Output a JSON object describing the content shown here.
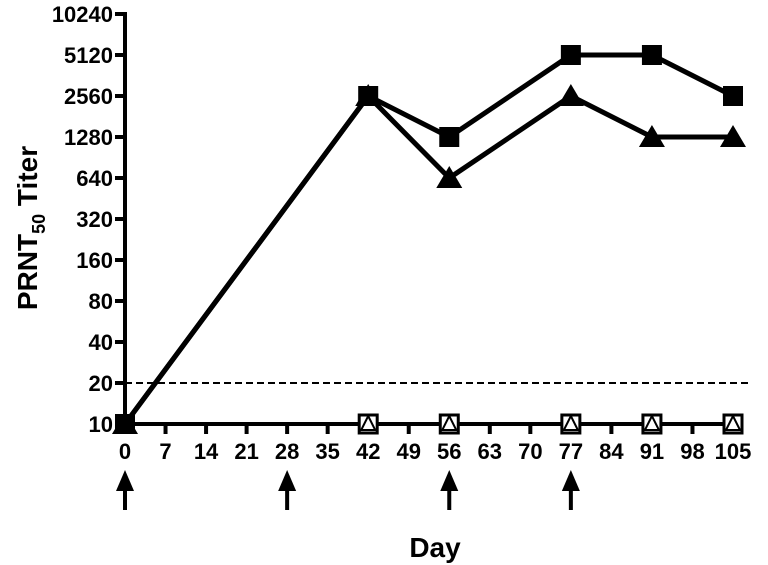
{
  "chart_data": {
    "type": "line",
    "xlabel": "Day",
    "ylabel": {
      "prefix": "PRNT",
      "subscript": "50",
      "suffix": " Titer"
    },
    "yscale": "log2",
    "ylim": [
      10,
      10240
    ],
    "xlim": [
      0,
      105
    ],
    "x_ticks": [
      0,
      7,
      14,
      21,
      28,
      35,
      42,
      49,
      56,
      63,
      70,
      77,
      84,
      91,
      98,
      105
    ],
    "y_ticks": [
      10,
      20,
      40,
      80,
      160,
      320,
      640,
      1280,
      2560,
      5120,
      10240
    ],
    "threshold": 20,
    "vaccination_days": [
      0,
      28,
      56,
      77
    ],
    "series": [
      {
        "marker": "filled-square",
        "x": [
          0,
          42,
          56,
          77,
          91,
          105
        ],
        "y": [
          10,
          2560,
          1280,
          5120,
          5120,
          2560
        ]
      },
      {
        "marker": "filled-triangle",
        "x": [
          0,
          42,
          56,
          77,
          91,
          105
        ],
        "y": [
          10,
          2560,
          640,
          2560,
          1280,
          1280
        ]
      },
      {
        "marker": "open-square",
        "x": [
          42,
          56,
          77,
          91,
          105
        ],
        "y": [
          10,
          10,
          10,
          10,
          10
        ]
      },
      {
        "marker": "open-triangle",
        "x": [
          42,
          56,
          77,
          91,
          105
        ],
        "y": [
          10,
          10,
          10,
          10,
          10
        ]
      }
    ],
    "colors": {
      "ink": "#000000",
      "background": "#ffffff"
    }
  }
}
